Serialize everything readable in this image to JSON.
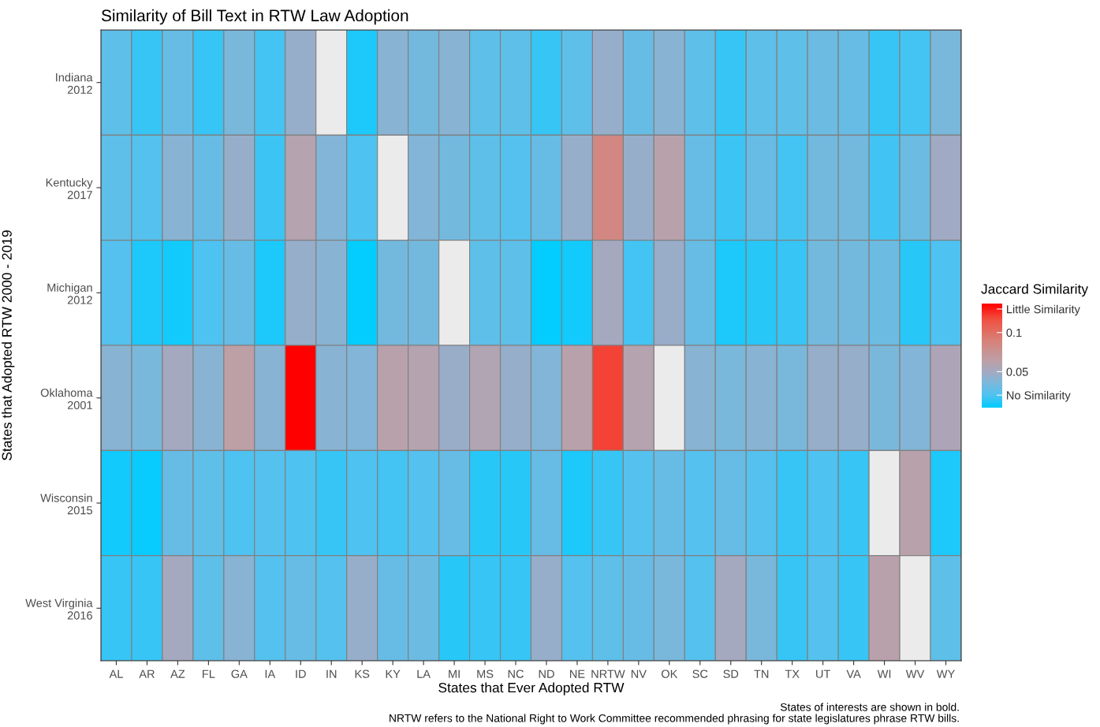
{
  "chart_data": {
    "type": "heatmap",
    "title": "Similarity of Bill Text in RTW Law Adoption",
    "xlabel": "States that Ever Adopted RTW",
    "ylabel": "States that Adopted RTW 2000 - 2019",
    "clabel": "Jaccard Similarity",
    "categories": [
      "AL",
      "AR",
      "AZ",
      "FL",
      "GA",
      "IA",
      "ID",
      "IN",
      "KS",
      "KY",
      "LA",
      "MI",
      "MS",
      "NC",
      "ND",
      "NE",
      "NRTW",
      "NV",
      "OK",
      "SC",
      "SD",
      "TN",
      "TX",
      "UT",
      "VA",
      "WI",
      "WV",
      "WY"
    ],
    "y_categories": [
      "Indiana\n2012",
      "Kentucky\n2017",
      "Michigan\n2012",
      "Oklahoma\n2001",
      "Wisconsin\n2015",
      "West Virginia\n2016"
    ],
    "cells": [
      [
        0.025,
        0.015,
        0.028,
        0.015,
        0.035,
        0.018,
        0.045,
        null,
        0.01,
        0.04,
        0.033,
        0.04,
        0.025,
        0.025,
        0.015,
        0.025,
        0.045,
        0.028,
        0.04,
        0.025,
        0.015,
        0.025,
        0.025,
        0.03,
        0.028,
        0.015,
        0.018,
        0.035
      ],
      [
        0.025,
        0.022,
        0.04,
        0.028,
        0.045,
        0.016,
        0.06,
        0.038,
        0.02,
        null,
        0.038,
        0.033,
        0.025,
        0.022,
        0.028,
        0.045,
        0.085,
        0.045,
        0.062,
        0.028,
        0.016,
        0.028,
        0.018,
        0.033,
        0.033,
        0.017,
        0.03,
        0.048
      ],
      [
        0.022,
        0.01,
        0.008,
        0.02,
        0.028,
        0.01,
        0.045,
        0.04,
        0.005,
        0.033,
        0.033,
        null,
        0.025,
        0.025,
        0.005,
        0.008,
        0.05,
        0.018,
        0.046,
        0.028,
        0.01,
        0.012,
        0.015,
        0.033,
        0.033,
        0.03,
        0.012,
        0.02
      ],
      [
        0.04,
        0.035,
        0.05,
        0.04,
        0.065,
        0.04,
        0.137,
        0.04,
        0.038,
        0.062,
        0.06,
        0.046,
        0.058,
        0.045,
        0.038,
        0.062,
        0.12,
        0.06,
        null,
        0.04,
        0.035,
        0.04,
        0.035,
        0.045,
        0.045,
        0.035,
        0.038,
        0.055
      ],
      [
        0.008,
        0.006,
        0.028,
        0.025,
        0.02,
        0.022,
        0.02,
        0.015,
        0.02,
        0.018,
        0.022,
        0.028,
        0.012,
        0.012,
        0.028,
        0.01,
        0.015,
        0.022,
        0.028,
        0.022,
        0.028,
        0.022,
        0.015,
        0.02,
        0.015,
        null,
        0.062,
        0.01
      ],
      [
        0.015,
        0.015,
        0.05,
        0.025,
        0.04,
        0.022,
        0.028,
        0.022,
        0.045,
        0.028,
        0.03,
        0.012,
        0.015,
        0.015,
        0.045,
        0.022,
        0.025,
        0.028,
        0.035,
        0.022,
        0.05,
        0.035,
        0.015,
        0.022,
        0.015,
        0.062,
        null,
        0.025
      ]
    ],
    "clim": [
      0.004,
      0.137
    ],
    "cticks": [
      {
        "value": 0.02,
        "label": "No Similarity"
      },
      {
        "value": 0.05,
        "label": "0.05"
      },
      {
        "value": 0.1,
        "label": "0.1"
      },
      {
        "value": 0.13,
        "label": "Little Similarity"
      }
    ],
    "annotations": [
      "States of interests are shown in bold.",
      "NRTW refers to the National Right to Work Committee recommended phrasing for state legislatures phrase RTW bills."
    ]
  }
}
